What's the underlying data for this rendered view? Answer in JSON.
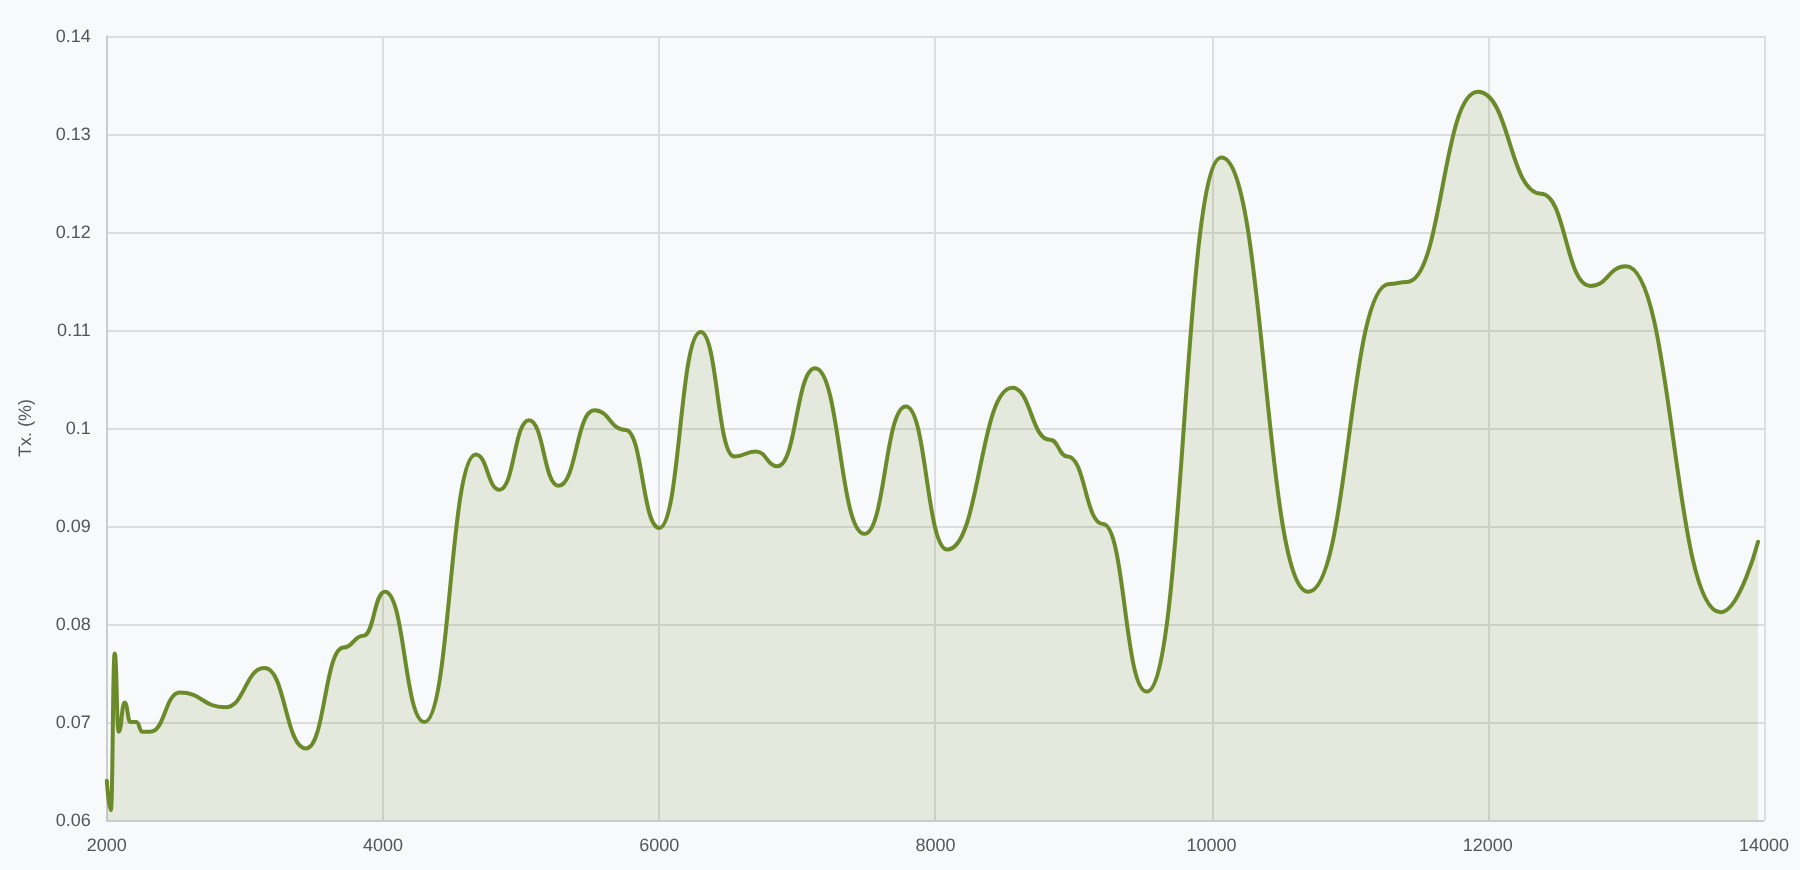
{
  "chart_data": {
    "type": "area",
    "ylabel": "Tx. (%)",
    "xlim": [
      2000,
      14000
    ],
    "xticks": [
      2000,
      4000,
      6000,
      8000,
      10000,
      12000,
      14000
    ],
    "ylim": [
      0.06,
      0.14
    ],
    "yticks": [
      0.06,
      0.07,
      0.08,
      0.09,
      0.1,
      0.11,
      0.12,
      0.13,
      0.14
    ],
    "grid": true,
    "marker": "none",
    "line_style": "solid",
    "series": [
      {
        "color": "#6b8a2a",
        "x": [
          2000,
          2029,
          2057,
          2086,
          2129,
          2171,
          2214,
          2257,
          2314,
          2529,
          2857,
          3143,
          3443,
          3714,
          3857,
          4014,
          4300,
          4671,
          4843,
          5057,
          5271,
          5529,
          5757,
          6000,
          6300,
          6543,
          6700,
          6857,
          7129,
          7486,
          7786,
          8086,
          8557,
          8829,
          8957,
          9214,
          9529,
          10071,
          10700,
          11286,
          11414,
          11929,
          12386,
          12743,
          13000,
          13686,
          13957
        ],
        "values": [
          0.064,
          0.061,
          0.077,
          0.069,
          0.072,
          0.07,
          0.07,
          0.069,
          0.069,
          0.073,
          0.0715,
          0.0755,
          0.0673,
          0.0776,
          0.0788,
          0.0833,
          0.07,
          0.0973,
          0.0937,
          0.1008,
          0.0941,
          0.1018,
          0.0998,
          0.0898,
          0.1098,
          0.0971,
          0.0976,
          0.0961,
          0.1061,
          0.0892,
          0.1022,
          0.0876,
          0.1041,
          0.0988,
          0.0971,
          0.0902,
          0.0731,
          0.1276,
          0.0833,
          0.1147,
          0.1149,
          0.1343,
          0.1239,
          0.1145,
          0.1165,
          0.0812,
          0.0884
        ]
      }
    ]
  }
}
